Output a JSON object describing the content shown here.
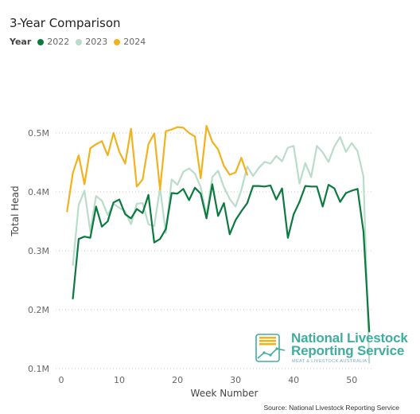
{
  "title": "3-Year Comparison",
  "legend": {
    "title": "Year",
    "items": [
      {
        "label": "2022",
        "color": "#0b7a3e"
      },
      {
        "label": "2023",
        "color": "#b9dccb"
      },
      {
        "label": "2024",
        "color": "#f2b21e"
      }
    ]
  },
  "source": "Source: National Livestock Reporting Service",
  "logo": {
    "line1": "National Livestock",
    "line2": "Reporting Service",
    "line3": "MEAT & LIVESTOCK AUSTRALIA"
  },
  "chart_data": {
    "type": "line",
    "title": "3-Year Comparison",
    "xlabel": "Week Number",
    "ylabel": "Total Head",
    "xlim": [
      0,
      53.8
    ],
    "ylim": [
      0.1,
      0.55
    ],
    "x_ticks": [
      0,
      10,
      20,
      30,
      40,
      50
    ],
    "x_tick_labels": [
      "0",
      "10",
      "20",
      "30",
      "40",
      "50"
    ],
    "y_ticks": [
      0.1,
      0.2,
      0.3,
      0.4,
      0.5
    ],
    "y_tick_labels": [
      "0.1M",
      "0.2M",
      "0.3M",
      "0.4M",
      "0.5M"
    ],
    "y_unit": "millions of head",
    "grid": "horizontal dotted",
    "legend_position": "top-left",
    "series": [
      {
        "name": "2022",
        "color": "#0b7a3e",
        "x": [
          2,
          3,
          4,
          5,
          6,
          7,
          8,
          9,
          10,
          11,
          12,
          13,
          14,
          15,
          16,
          17,
          18,
          19,
          20,
          21,
          22,
          23,
          24,
          25,
          26,
          27,
          28,
          29,
          30,
          31,
          32,
          33,
          34,
          35,
          36,
          37,
          38,
          39,
          40,
          41,
          42,
          43,
          44,
          45,
          46,
          47,
          48,
          49,
          50,
          51,
          52,
          53
        ],
        "y": [
          0.219,
          0.32,
          0.324,
          0.322,
          0.375,
          0.341,
          0.35,
          0.382,
          0.387,
          0.362,
          0.355,
          0.371,
          0.364,
          0.395,
          0.314,
          0.32,
          0.337,
          0.398,
          0.397,
          0.405,
          0.386,
          0.407,
          0.397,
          0.355,
          0.413,
          0.359,
          0.381,
          0.328,
          0.352,
          0.367,
          0.381,
          0.41,
          0.41,
          0.409,
          0.411,
          0.387,
          0.406,
          0.322,
          0.362,
          0.383,
          0.41,
          0.409,
          0.409,
          0.375,
          0.412,
          0.406,
          0.383,
          0.398,
          0.402,
          0.405,
          0.333,
          0.163
        ]
      },
      {
        "name": "2023",
        "color": "#b9dccb",
        "x": [
          2,
          3,
          4,
          5,
          6,
          7,
          8,
          9,
          10,
          11,
          12,
          13,
          14,
          15,
          16,
          17,
          18,
          19,
          20,
          21,
          22,
          23,
          24,
          25,
          26,
          27,
          28,
          29,
          30,
          31,
          32,
          33,
          34,
          35,
          36,
          37,
          38,
          39,
          40,
          41,
          42,
          43,
          44,
          45,
          46,
          47,
          48,
          49,
          50,
          51,
          52,
          53
        ],
        "y": [
          0.276,
          0.378,
          0.402,
          0.333,
          0.393,
          0.385,
          0.361,
          0.38,
          0.373,
          0.367,
          0.345,
          0.38,
          0.381,
          0.345,
          0.342,
          0.407,
          0.33,
          0.421,
          0.412,
          0.434,
          0.44,
          0.431,
          0.408,
          0.36,
          0.425,
          0.436,
          0.408,
          0.388,
          0.375,
          0.403,
          0.443,
          0.427,
          0.441,
          0.451,
          0.448,
          0.461,
          0.452,
          0.475,
          0.478,
          0.414,
          0.449,
          0.425,
          0.478,
          0.467,
          0.451,
          0.477,
          0.493,
          0.468,
          0.483,
          0.469,
          0.426,
          0.11
        ]
      },
      {
        "name": "2024",
        "color": "#f2b21e",
        "x": [
          1,
          2,
          3,
          4,
          5,
          6,
          7,
          8,
          9,
          10,
          11,
          12,
          13,
          14,
          15,
          16,
          17,
          18,
          19,
          20,
          21,
          22,
          23,
          24,
          25,
          26,
          27,
          28,
          29,
          30,
          31,
          32
        ],
        "y": [
          0.367,
          0.432,
          0.462,
          0.413,
          0.474,
          0.481,
          0.486,
          0.462,
          0.5,
          0.468,
          0.448,
          0.507,
          0.409,
          0.421,
          0.481,
          0.499,
          0.404,
          0.503,
          0.506,
          0.51,
          0.509,
          0.5,
          0.494,
          0.423,
          0.512,
          0.485,
          0.472,
          0.444,
          0.429,
          0.433,
          0.458,
          0.429
        ]
      }
    ]
  }
}
